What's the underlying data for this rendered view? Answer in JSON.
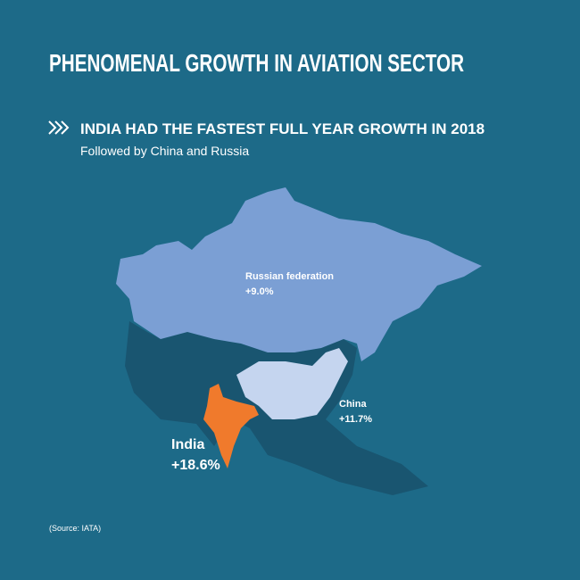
{
  "header": {
    "title": "PHENOMENAL GROWTH IN AVIATION SECTOR",
    "headline": "INDIA HAD THE FASTEST FULL YEAR GROWTH IN 2018",
    "subheadline": "Followed by China and Russia"
  },
  "regions": [
    {
      "name": "Russian federation",
      "growth": "+9.0%"
    },
    {
      "name": "China",
      "growth": "+11.7%"
    },
    {
      "name": "India",
      "growth": "+18.6%"
    }
  ],
  "source": "(Source: IATA)"
}
